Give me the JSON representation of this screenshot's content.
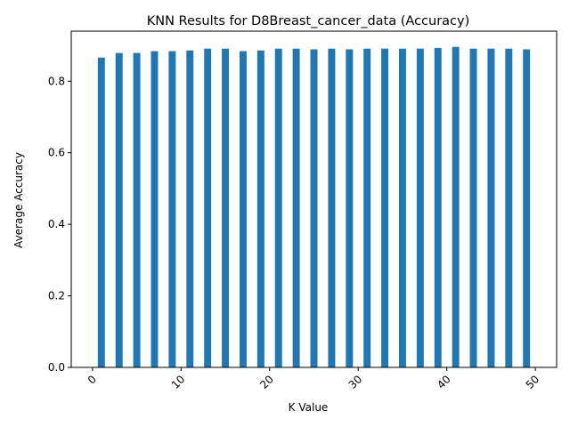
{
  "chart_data": {
    "type": "bar",
    "title": "KNN Results for D8Breast_cancer_data (Accuracy)",
    "xlabel": "K Value",
    "ylabel": "Average Accuracy",
    "x": [
      1,
      3,
      5,
      7,
      9,
      11,
      13,
      15,
      17,
      19,
      21,
      23,
      25,
      27,
      29,
      31,
      33,
      35,
      37,
      39,
      41,
      43,
      45,
      47,
      49
    ],
    "values": [
      0.866,
      0.879,
      0.879,
      0.884,
      0.884,
      0.886,
      0.891,
      0.891,
      0.884,
      0.886,
      0.891,
      0.891,
      0.889,
      0.891,
      0.889,
      0.891,
      0.891,
      0.891,
      0.891,
      0.893,
      0.896,
      0.891,
      0.891,
      0.891,
      0.889
    ],
    "bar_width": 0.8,
    "xlim": [
      -2.4,
      52.4
    ],
    "ylim": [
      0,
      0.94
    ],
    "xticks": [
      0,
      10,
      20,
      30,
      40,
      50
    ],
    "xtick_labels": [
      "0",
      "10",
      "20",
      "30",
      "40",
      "50"
    ],
    "xtick_rotation": 45,
    "yticks": [
      0.0,
      0.2,
      0.4,
      0.6,
      0.8
    ],
    "ytick_labels": [
      "0.0",
      "0.2",
      "0.4",
      "0.6",
      "0.8"
    ],
    "bar_color": "#1f77b4",
    "grid": false,
    "legend": "none"
  }
}
